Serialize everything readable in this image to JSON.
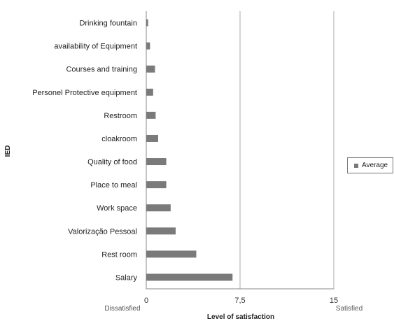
{
  "chart_data": {
    "type": "bar",
    "orientation": "horizontal",
    "categories": [
      "Drinking fountain",
      "availability of Equipment",
      "Courses and training",
      "Personel Protective equipment",
      "Restroom",
      "cloakroom",
      "Quality of food",
      "Place to meal",
      "Work space",
      "Valorização Pessoal",
      "Rest room",
      "Salary"
    ],
    "series": [
      {
        "name": "Average",
        "color": "#7a7a7a",
        "values": [
          0.15,
          0.3,
          0.7,
          0.55,
          0.75,
          0.95,
          1.6,
          1.6,
          1.95,
          2.35,
          4.0,
          6.9
        ]
      }
    ],
    "xlim": [
      0,
      15
    ],
    "x_ticks": [
      "0",
      "7,5",
      "15"
    ],
    "xlabel": "Level of satisfaction",
    "ylabel": "IED",
    "x_min_label": "Dissatisfied",
    "x_max_label": "Satisfied",
    "gridlines": "vertical at major ticks",
    "legend_position": "right"
  }
}
